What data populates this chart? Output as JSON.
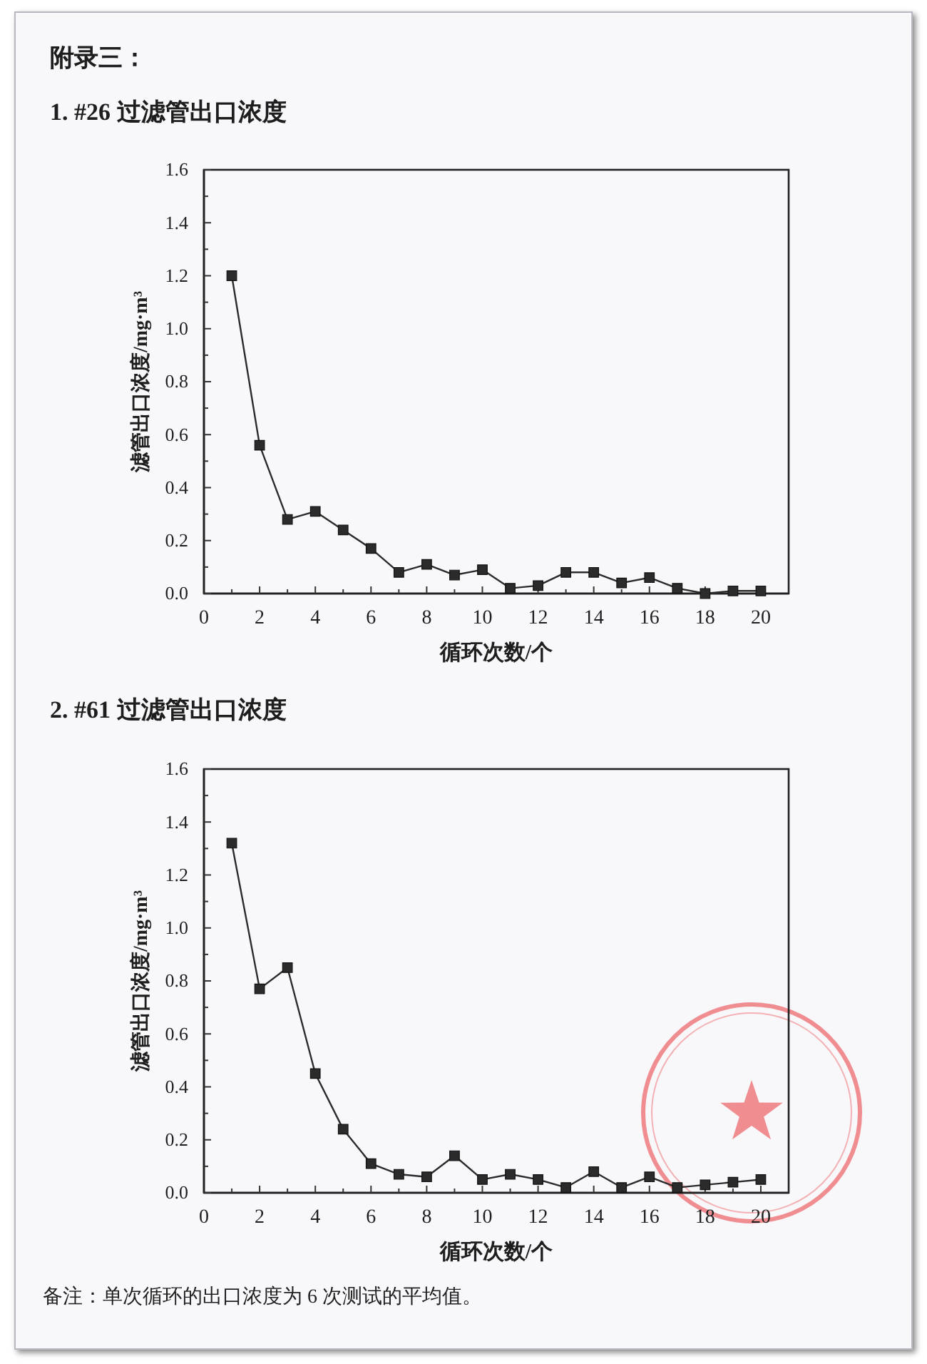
{
  "chart_data": [
    {
      "type": "line",
      "title": "1. #26 过滤管出口浓度",
      "xlabel": "循环次数/个",
      "ylabel": "滤管出口浓度/mg·m³",
      "annotations": [
        "附录三："
      ],
      "x": [
        1,
        2,
        3,
        4,
        5,
        6,
        7,
        8,
        9,
        10,
        11,
        12,
        13,
        14,
        15,
        16,
        17,
        18,
        19,
        20
      ],
      "series": [
        {
          "color": "#2b2b2b",
          "values": [
            1.2,
            0.56,
            0.28,
            0.31,
            0.24,
            0.17,
            0.08,
            0.11,
            0.07,
            0.09,
            0.02,
            0.03,
            0.08,
            0.08,
            0.04,
            0.06,
            0.02,
            0.0,
            0.01,
            0.01
          ]
        }
      ],
      "xlim": [
        0,
        21
      ],
      "xticks": [
        0,
        {
          "value": 1,
          "label": null
        },
        2,
        {
          "value": 3,
          "label": null
        },
        4,
        {
          "value": 5,
          "label": null
        },
        6,
        {
          "value": 7,
          "label": null
        },
        8,
        {
          "value": 9,
          "label": null
        },
        10,
        {
          "value": 11,
          "label": null
        },
        12,
        {
          "value": 13,
          "label": null
        },
        14,
        {
          "value": 15,
          "label": null
        },
        16,
        {
          "value": 17,
          "label": null
        },
        18,
        {
          "value": 19,
          "label": null
        },
        20
      ],
      "ylim": [
        0,
        1.6
      ],
      "yticks": [
        {
          "value": 0,
          "label": "0.0"
        },
        {
          "value": 0.1,
          "label": null
        },
        0.2,
        {
          "value": 0.3,
          "label": null
        },
        0.4,
        {
          "value": 0.5,
          "label": null
        },
        0.6,
        {
          "value": 0.7,
          "label": null
        },
        0.8,
        {
          "value": 0.9,
          "label": null
        },
        {
          "value": 1,
          "label": "1.0"
        },
        {
          "value": 1.1,
          "label": null
        },
        1.2,
        {
          "value": 1.3,
          "label": null
        },
        1.4,
        {
          "value": 1.5,
          "label": null
        },
        1.6
      ],
      "marker": "square",
      "line_style": "solid"
    },
    {
      "type": "line",
      "title": "2. #61 过滤管出口浓度",
      "xlabel": "循环次数/个",
      "ylabel": "滤管出口浓度/mg·m³",
      "annotations": [
        "备注：单次循环的出口浓度为 6 次测试的平均值。"
      ],
      "x": [
        1,
        2,
        3,
        4,
        5,
        6,
        7,
        8,
        9,
        10,
        11,
        12,
        13,
        14,
        15,
        16,
        17,
        18,
        19,
        20
      ],
      "series": [
        {
          "color": "#2b2b2b",
          "values": [
            1.32,
            0.77,
            0.85,
            0.45,
            0.24,
            0.11,
            0.07,
            0.06,
            0.14,
            0.05,
            0.07,
            0.05,
            0.02,
            0.08,
            0.02,
            0.06,
            0.02,
            0.03,
            0.04,
            0.05
          ]
        }
      ],
      "xlim": [
        0,
        21
      ],
      "xticks": [
        0,
        {
          "value": 1,
          "label": null
        },
        2,
        {
          "value": 3,
          "label": null
        },
        4,
        {
          "value": 5,
          "label": null
        },
        6,
        {
          "value": 7,
          "label": null
        },
        8,
        {
          "value": 9,
          "label": null
        },
        10,
        {
          "value": 11,
          "label": null
        },
        12,
        {
          "value": 13,
          "label": null
        },
        14,
        {
          "value": 15,
          "label": null
        },
        16,
        {
          "value": 17,
          "label": null
        },
        18,
        {
          "value": 19,
          "label": null
        },
        20
      ],
      "ylim": [
        0,
        1.6
      ],
      "yticks": [
        {
          "value": 0,
          "label": "0.0"
        },
        {
          "value": 0.1,
          "label": null
        },
        0.2,
        {
          "value": 0.3,
          "label": null
        },
        0.4,
        {
          "value": 0.5,
          "label": null
        },
        0.6,
        {
          "value": 0.7,
          "label": null
        },
        0.8,
        {
          "value": 0.9,
          "label": null
        },
        {
          "value": 1,
          "label": "1.0"
        },
        {
          "value": 1.1,
          "label": null
        },
        1.2,
        {
          "value": 1.3,
          "label": null
        },
        1.4,
        {
          "value": 1.5,
          "label": null
        },
        1.6
      ],
      "marker": "square",
      "line_style": "solid"
    }
  ]
}
